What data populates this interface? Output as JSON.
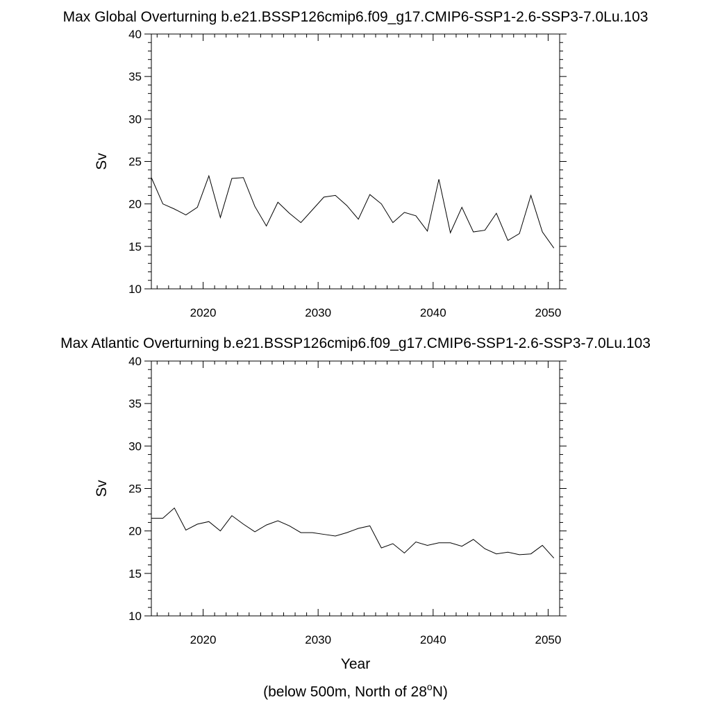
{
  "chart_data": [
    {
      "type": "line",
      "title": "Max Global Overturning b.e21.BSSP126cmip6.f09_g17.CMIP6-SSP1-2.6-SSP3-7.0Lu.103",
      "xlabel": "",
      "ylabel": "Sv",
      "xlim": [
        2015.5,
        2051
      ],
      "ylim": [
        10,
        40
      ],
      "xticks": [
        2020,
        2030,
        2040,
        2050
      ],
      "yticks": [
        10,
        15,
        20,
        25,
        30,
        35,
        40
      ],
      "grid": false,
      "line_color": "#000000",
      "series": [
        {
          "x": [
            2015.5,
            2016.5,
            2017.5,
            2018.5,
            2019.5,
            2020.5,
            2021.5,
            2022.5,
            2023.5,
            2024.5,
            2025.5,
            2026.5,
            2027.5,
            2028.5,
            2029.5,
            2030.5,
            2031.5,
            2032.5,
            2033.5,
            2034.5,
            2035.5,
            2036.5,
            2037.5,
            2038.5,
            2039.5,
            2040.5,
            2041.5,
            2042.5,
            2043.5,
            2044.5,
            2045.5,
            2046.5,
            2047.5,
            2048.5,
            2049.5,
            2050.5
          ],
          "values": [
            23.1,
            20.0,
            19.4,
            18.7,
            19.6,
            23.3,
            18.4,
            23.0,
            23.1,
            19.7,
            17.4,
            20.2,
            18.9,
            17.8,
            19.3,
            20.8,
            21.0,
            19.8,
            18.2,
            21.1,
            20.0,
            17.8,
            19.0,
            18.6,
            16.8,
            22.9,
            16.6,
            19.6,
            16.7,
            16.9,
            18.9,
            15.7,
            16.5,
            21.0,
            16.7,
            14.8
          ]
        }
      ]
    },
    {
      "type": "line",
      "title": "Max Atlantic Overturning b.e21.BSSP126cmip6.f09_g17.CMIP6-SSP1-2.6-SSP3-7.0Lu.103",
      "xlabel": "Year",
      "ylabel": "Sv",
      "xlim": [
        2015.5,
        2051
      ],
      "ylim": [
        10,
        40
      ],
      "xticks": [
        2020,
        2030,
        2040,
        2050
      ],
      "yticks": [
        10,
        15,
        20,
        25,
        30,
        35,
        40
      ],
      "grid": false,
      "line_color": "#000000",
      "series": [
        {
          "x": [
            2015.5,
            2016.5,
            2017.5,
            2018.5,
            2019.5,
            2020.5,
            2021.5,
            2022.5,
            2023.5,
            2024.5,
            2025.5,
            2026.5,
            2027.5,
            2028.5,
            2029.5,
            2030.5,
            2031.5,
            2032.5,
            2033.5,
            2034.5,
            2035.5,
            2036.5,
            2037.5,
            2038.5,
            2039.5,
            2040.5,
            2041.5,
            2042.5,
            2043.5,
            2044.5,
            2045.5,
            2046.5,
            2047.5,
            2048.5,
            2049.5,
            2050.5
          ],
          "values": [
            21.5,
            21.5,
            22.7,
            20.1,
            20.8,
            21.1,
            20.0,
            21.8,
            20.8,
            19.9,
            20.7,
            21.2,
            20.6,
            19.8,
            19.8,
            19.6,
            19.4,
            19.8,
            20.3,
            20.6,
            18.0,
            18.5,
            17.4,
            18.7,
            18.3,
            18.6,
            18.6,
            18.2,
            19.0,
            17.9,
            17.3,
            17.5,
            17.2,
            17.3,
            18.3,
            16.8
          ]
        }
      ]
    }
  ],
  "figure": {
    "caption_main": "(below 500m, North of 28",
    "caption_sup": "o",
    "caption_end": "N)"
  }
}
